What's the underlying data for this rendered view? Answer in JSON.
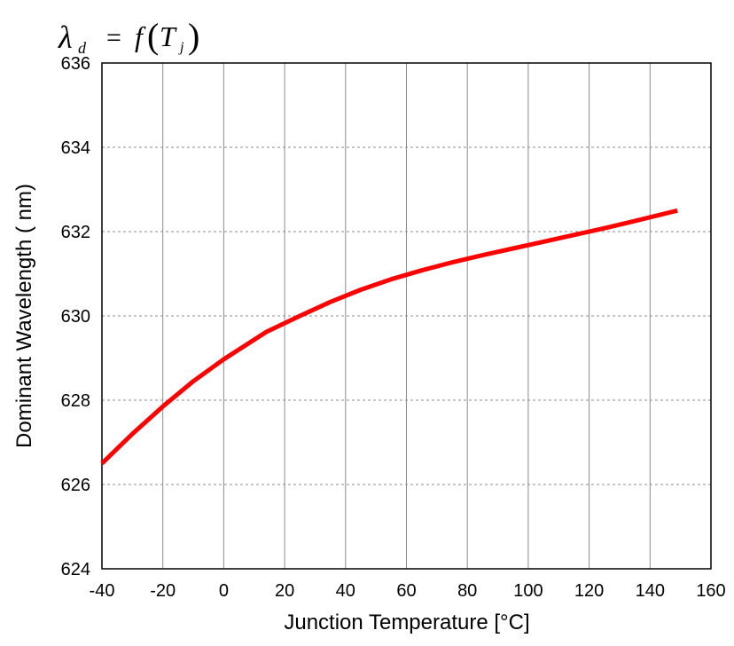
{
  "chart_data": {
    "type": "line",
    "title": "λd = f(Tj)",
    "title_parts": {
      "lambda": "λ",
      "lambda_sub": "d",
      "equals": "=",
      "func": "f",
      "open_paren": "(",
      "var": "T",
      "var_sub": "j",
      "close_paren": ")"
    },
    "xlabel": "Junction Temperature [°C]",
    "ylabel": "Dominant Wavelength ( nm)",
    "xlim": [
      -40,
      160
    ],
    "ylim": [
      624,
      636
    ],
    "xticks": [
      -40,
      -20,
      0,
      20,
      40,
      60,
      80,
      100,
      120,
      140,
      160
    ],
    "yticks": [
      624,
      626,
      628,
      630,
      632,
      634,
      636
    ],
    "x_grid": "solid",
    "y_grid": "dashed",
    "line_color": "#ff0000",
    "grid_color": "#8c8c8c",
    "series": [
      {
        "values": [
          [
            -40,
            626.5
          ],
          [
            -30,
            627.2
          ],
          [
            -20,
            627.85
          ],
          [
            -10,
            628.45
          ],
          [
            0,
            628.97
          ],
          [
            14,
            629.62
          ],
          [
            25,
            630.0
          ],
          [
            35,
            630.33
          ],
          [
            45,
            630.62
          ],
          [
            55,
            630.87
          ],
          [
            65,
            631.08
          ],
          [
            75,
            631.27
          ],
          [
            85,
            631.44
          ],
          [
            95,
            631.6
          ],
          [
            105,
            631.76
          ],
          [
            115,
            631.92
          ],
          [
            125,
            632.08
          ],
          [
            135,
            632.25
          ],
          [
            149,
            632.5
          ]
        ]
      }
    ]
  }
}
